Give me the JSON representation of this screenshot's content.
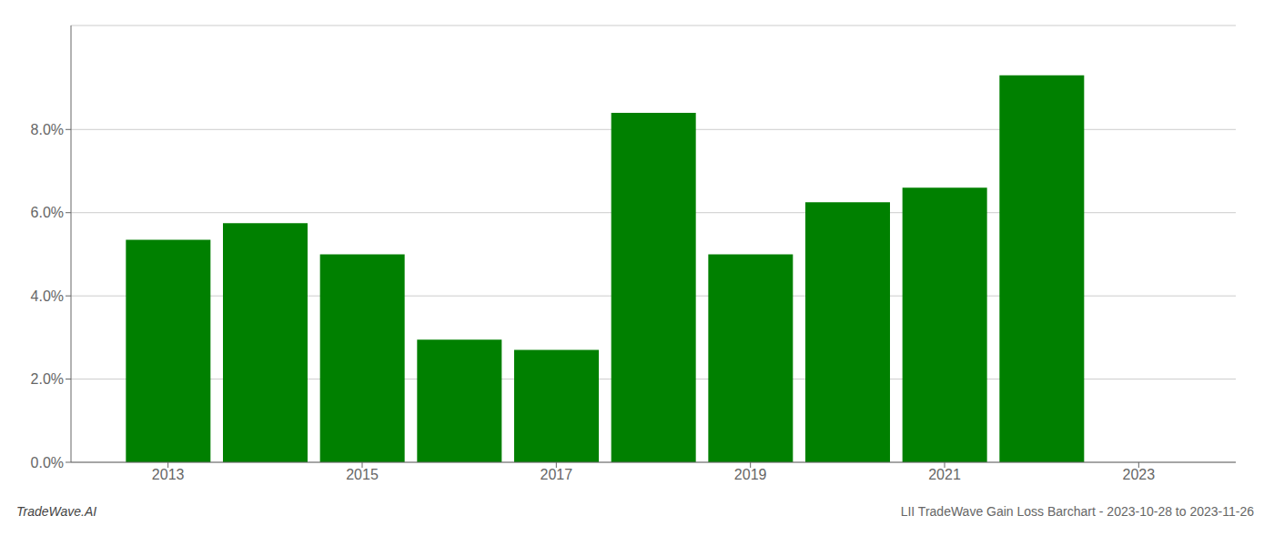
{
  "chart_data": {
    "type": "bar",
    "x": [
      2013,
      2014,
      2015,
      2016,
      2017,
      2018,
      2019,
      2020,
      2021,
      2022
    ],
    "values": [
      0.0535,
      0.0575,
      0.05,
      0.0295,
      0.027,
      0.084,
      0.05,
      0.0625,
      0.066,
      0.093
    ],
    "color": "#008000",
    "xlim": [
      2012,
      2024
    ],
    "xticks": [
      2013,
      2015,
      2017,
      2019,
      2021,
      2023
    ],
    "ylim": [
      0,
      0.105
    ],
    "yticks": [
      {
        "value": 0,
        "label": "0.0%"
      },
      {
        "value": 0.02,
        "label": "2.0%"
      },
      {
        "value": 0.04,
        "label": "4.0%"
      },
      {
        "value": 0.06,
        "label": "6.0%"
      },
      {
        "value": 0.08,
        "label": "8.0%"
      }
    ],
    "grid": true,
    "annotations": [
      "TradeWave.AI",
      "LII TradeWave Gain Loss Barchart - 2023-10-28 to 2023-11-26"
    ]
  }
}
